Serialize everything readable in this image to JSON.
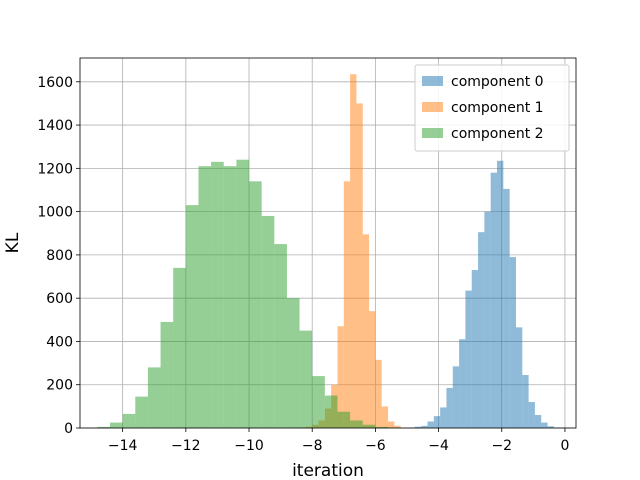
{
  "chart_data": {
    "type": "histogram",
    "title": "",
    "xlabel": "iteration",
    "ylabel": "KL",
    "xlim": [
      -15.35,
      0.35
    ],
    "ylim": [
      0,
      1710
    ],
    "grid": true,
    "legend_position": "top-right",
    "x_ticks": [
      {
        "value": -14,
        "label": "−14"
      },
      {
        "value": -12,
        "label": "−12"
      },
      {
        "value": -10,
        "label": "−10"
      },
      {
        "value": -8,
        "label": "−8"
      },
      {
        "value": -6,
        "label": "−6"
      },
      {
        "value": -4,
        "label": "−4"
      },
      {
        "value": -2,
        "label": "−2"
      },
      {
        "value": 0,
        "label": "0"
      }
    ],
    "y_ticks": [
      {
        "value": 0,
        "label": "0"
      },
      {
        "value": 200,
        "label": "200"
      },
      {
        "value": 400,
        "label": "400"
      },
      {
        "value": 600,
        "label": "600"
      },
      {
        "value": 800,
        "label": "800"
      },
      {
        "value": 1000,
        "label": "1000"
      },
      {
        "value": 1200,
        "label": "1200"
      },
      {
        "value": 1400,
        "label": "1400"
      },
      {
        "value": 1600,
        "label": "1600"
      }
    ],
    "series": [
      {
        "name": "component 0",
        "color": "#1f77b4",
        "opacity": 0.5,
        "bins": [
          [
            -4.95,
            -4.75,
            2
          ],
          [
            -4.75,
            -4.55,
            6
          ],
          [
            -4.55,
            -4.35,
            10
          ],
          [
            -4.35,
            -4.15,
            30
          ],
          [
            -4.15,
            -3.95,
            55
          ],
          [
            -3.95,
            -3.75,
            95
          ],
          [
            -3.75,
            -3.55,
            185
          ],
          [
            -3.55,
            -3.35,
            285
          ],
          [
            -3.35,
            -3.15,
            410
          ],
          [
            -3.15,
            -2.95,
            635
          ],
          [
            -2.95,
            -2.75,
            730
          ],
          [
            -2.75,
            -2.55,
            905
          ],
          [
            -2.55,
            -2.35,
            1000
          ],
          [
            -2.35,
            -2.15,
            1180
          ],
          [
            -2.15,
            -1.95,
            1235
          ],
          [
            -1.95,
            -1.75,
            1105
          ],
          [
            -1.75,
            -1.55,
            790
          ],
          [
            -1.55,
            -1.35,
            465
          ],
          [
            -1.35,
            -1.15,
            245
          ],
          [
            -1.15,
            -0.95,
            120
          ],
          [
            -0.95,
            -0.75,
            60
          ],
          [
            -0.75,
            -0.55,
            25
          ],
          [
            -0.55,
            -0.35,
            8
          ],
          [
            -0.35,
            -0.15,
            2
          ],
          [
            -0.15,
            0.05,
            1
          ]
        ]
      },
      {
        "name": "component 1",
        "color": "#ff7f0e",
        "opacity": 0.5,
        "bins": [
          [
            -8.4,
            -8.2,
            2
          ],
          [
            -8.2,
            -8.0,
            6
          ],
          [
            -8.0,
            -7.8,
            15
          ],
          [
            -7.8,
            -7.6,
            35
          ],
          [
            -7.6,
            -7.4,
            90
          ],
          [
            -7.4,
            -7.2,
            200
          ],
          [
            -7.2,
            -7.0,
            470
          ],
          [
            -7.0,
            -6.8,
            1140
          ],
          [
            -6.8,
            -6.6,
            1635
          ],
          [
            -6.6,
            -6.4,
            1500
          ],
          [
            -6.4,
            -6.2,
            895
          ],
          [
            -6.2,
            -6.0,
            540
          ],
          [
            -6.0,
            -5.8,
            315
          ],
          [
            -5.8,
            -5.6,
            100
          ],
          [
            -5.6,
            -5.4,
            30
          ],
          [
            -5.4,
            -5.2,
            10
          ],
          [
            -5.2,
            -5.0,
            2
          ]
        ]
      },
      {
        "name": "component 2",
        "color": "#2ca02c",
        "opacity": 0.5,
        "bins": [
          [
            -14.8,
            -14.4,
            5
          ],
          [
            -14.4,
            -14.0,
            25
          ],
          [
            -14.0,
            -13.6,
            65
          ],
          [
            -13.6,
            -13.2,
            145
          ],
          [
            -13.2,
            -12.8,
            280
          ],
          [
            -12.8,
            -12.4,
            490
          ],
          [
            -12.4,
            -12.0,
            740
          ],
          [
            -12.0,
            -11.6,
            1030
          ],
          [
            -11.6,
            -11.2,
            1210
          ],
          [
            -11.2,
            -10.8,
            1230
          ],
          [
            -10.8,
            -10.4,
            1210
          ],
          [
            -10.4,
            -10.0,
            1240
          ],
          [
            -10.0,
            -9.6,
            1140
          ],
          [
            -9.6,
            -9.2,
            980
          ],
          [
            -9.2,
            -8.8,
            850
          ],
          [
            -8.8,
            -8.4,
            600
          ],
          [
            -8.4,
            -8.0,
            450
          ],
          [
            -8.0,
            -7.6,
            240
          ],
          [
            -7.6,
            -7.2,
            150
          ],
          [
            -7.2,
            -6.8,
            75
          ],
          [
            -6.8,
            -6.4,
            35
          ],
          [
            -6.4,
            -6.0,
            15
          ],
          [
            -6.0,
            -5.6,
            5
          ],
          [
            -5.6,
            -5.2,
            2
          ]
        ]
      }
    ]
  }
}
